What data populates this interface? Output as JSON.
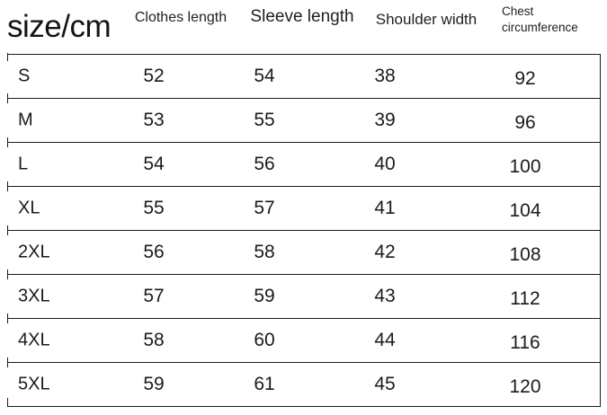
{
  "colors": {
    "background": "#ffffff",
    "text": "#1b1b1b",
    "line": "#1c1c1c"
  },
  "chart_data": {
    "type": "table",
    "title": "size/cm",
    "columns": [
      "size/cm",
      "Clothes length",
      "Sleeve length",
      "Shoulder width",
      "Chest circumference"
    ],
    "rows": [
      [
        "S",
        52,
        54,
        38,
        92
      ],
      [
        "M",
        53,
        55,
        39,
        96
      ],
      [
        "L",
        54,
        56,
        40,
        100
      ],
      [
        "XL",
        55,
        57,
        41,
        104
      ],
      [
        "2XL",
        56,
        58,
        42,
        108
      ],
      [
        "3XL",
        57,
        59,
        43,
        112
      ],
      [
        "4XL",
        58,
        60,
        44,
        116
      ],
      [
        "5XL",
        59,
        61,
        45,
        120
      ]
    ],
    "layout": {
      "grid": "horizontal-rules-only",
      "right_border": true,
      "left_tick_stubs": true
    }
  }
}
